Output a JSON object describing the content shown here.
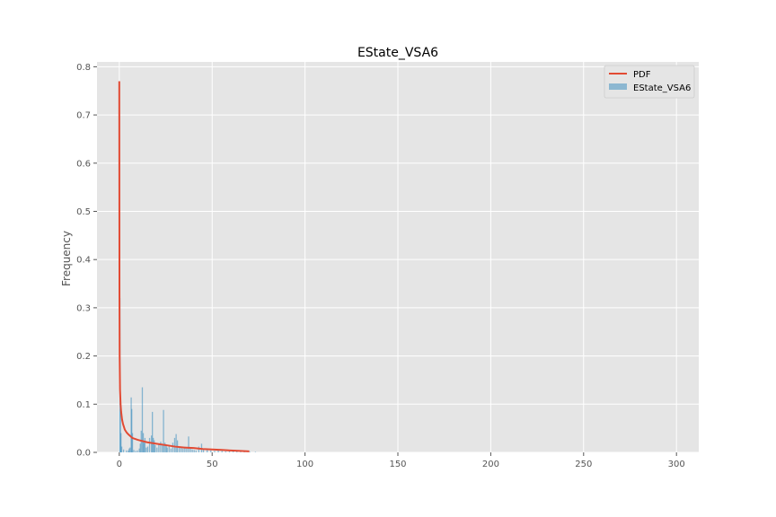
{
  "chart_data": {
    "type": "histogram",
    "title": "EState_VSA6",
    "xlabel": "",
    "ylabel": "Frequency",
    "xlim": [
      -12,
      312
    ],
    "ylim": [
      0,
      0.81
    ],
    "xticks": [
      0,
      50,
      100,
      150,
      200,
      250,
      300
    ],
    "xtick_labels": [
      "0",
      "50",
      "100",
      "150",
      "200",
      "250",
      "300"
    ],
    "yticks": [
      0.0,
      0.1,
      0.2,
      0.3,
      0.4,
      0.5,
      0.6,
      0.7,
      0.8
    ],
    "ytick_labels": [
      "0.0",
      "0.1",
      "0.2",
      "0.3",
      "0.4",
      "0.5",
      "0.6",
      "0.7",
      "0.8"
    ],
    "grid": true,
    "legend_position": "top-right",
    "legend": [
      {
        "label": "PDF",
        "kind": "line",
        "color": "#e24a33"
      },
      {
        "label": "EState_VSA6",
        "kind": "patch",
        "color": "#348abd"
      }
    ],
    "series": [
      {
        "name": "EState_VSA6",
        "kind": "histogram",
        "color": "#348abd",
        "x": [
          0.0,
          0.3,
          0.6,
          1.0,
          2.0,
          3.5,
          4.5,
          5.0,
          5.5,
          6.1,
          6.4,
          6.8,
          7.5,
          8.5,
          9.5,
          10.5,
          11.0,
          11.5,
          12.1,
          12.6,
          13.0,
          13.5,
          14.2,
          15.0,
          16.0,
          17.0,
          17.5,
          18.0,
          18.5,
          19.0,
          20.0,
          21.0,
          22.0,
          23.0,
          23.5,
          24.3,
          25.0,
          25.5,
          26.5,
          27.5,
          28.5,
          29.5,
          30.3,
          31.0,
          32.0,
          33.0,
          34.0,
          35.0,
          36.0,
          37.0,
          38.0,
          39.0,
          40.0,
          41.0,
          42.5,
          44.0,
          45.0,
          47.0,
          49.0,
          51.0,
          53.0,
          55.0,
          57.0,
          59.0,
          61.0,
          63.0,
          65.0,
          67.0,
          70.0,
          73.0
        ],
        "values": [
          0.32,
          0.09,
          0.04,
          0.012,
          0.006,
          0.004,
          0.004,
          0.008,
          0.01,
          0.114,
          0.09,
          0.04,
          0.005,
          0.003,
          0.004,
          0.008,
          0.018,
          0.045,
          0.135,
          0.04,
          0.02,
          0.03,
          0.01,
          0.012,
          0.03,
          0.035,
          0.084,
          0.03,
          0.025,
          0.015,
          0.01,
          0.018,
          0.022,
          0.015,
          0.088,
          0.02,
          0.015,
          0.01,
          0.012,
          0.008,
          0.02,
          0.03,
          0.038,
          0.025,
          0.012,
          0.01,
          0.008,
          0.012,
          0.008,
          0.033,
          0.008,
          0.006,
          0.005,
          0.004,
          0.012,
          0.018,
          0.006,
          0.005,
          0.004,
          0.003,
          0.004,
          0.003,
          0.002,
          0.002,
          0.005,
          0.002,
          0.001,
          0.001,
          0.001,
          0.001
        ]
      },
      {
        "name": "PDF",
        "kind": "line",
        "color": "#e24a33",
        "x": [
          0.0,
          0.1,
          0.2,
          0.4,
          0.7,
          1.0,
          1.5,
          2.0,
          3.0,
          4.0,
          5.0,
          7.0,
          10.0,
          15.0,
          20.0,
          25.0,
          30.0,
          35.0,
          40.0,
          45.0,
          50.0,
          55.0,
          60.0,
          65.0,
          70.0
        ],
        "values": [
          0.77,
          0.33,
          0.2,
          0.13,
          0.1,
          0.084,
          0.068,
          0.059,
          0.047,
          0.041,
          0.037,
          0.03,
          0.026,
          0.021,
          0.018,
          0.015,
          0.012,
          0.01,
          0.009,
          0.007,
          0.006,
          0.005,
          0.004,
          0.003,
          0.002
        ]
      }
    ]
  }
}
